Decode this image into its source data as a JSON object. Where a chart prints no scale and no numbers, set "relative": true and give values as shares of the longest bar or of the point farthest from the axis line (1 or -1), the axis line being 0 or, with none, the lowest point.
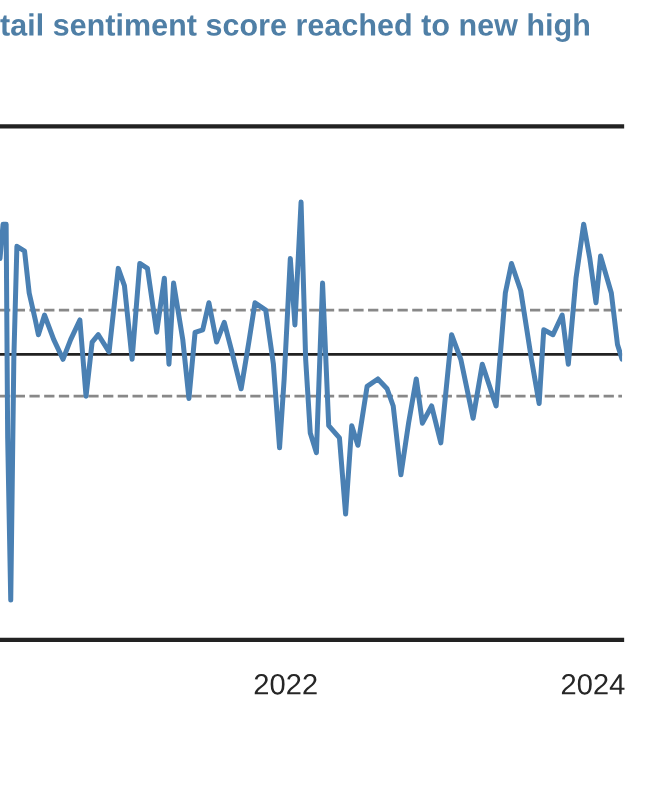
{
  "chart_data": {
    "type": "line",
    "title": "tail sentiment score reached to new high",
    "relative": true,
    "xlim": [
      2020.14,
      2024.19
    ],
    "xticks": [
      2022,
      2024
    ],
    "tick_labels": "x",
    "grid": false,
    "legend": false,
    "marker": "none",
    "line_style": "solid",
    "ref_lines": [
      {
        "axis": "y",
        "value": 0,
        "label": null,
        "color": "#222222",
        "line_style": "solid"
      },
      {
        "axis": "y",
        "value": 0.18,
        "label": null,
        "color": "#888888",
        "line_style": "dashed"
      },
      {
        "axis": "y",
        "value": -0.17,
        "label": null,
        "color": "#888888",
        "line_style": "dashed"
      }
    ],
    "series": [
      {
        "color": "#4a80b3",
        "x": [
          2020.14,
          2020.16,
          2020.18,
          2020.19,
          2020.21,
          2020.23,
          2020.25,
          2020.3,
          2020.33,
          2020.37,
          2020.39,
          2020.43,
          2020.49,
          2020.55,
          2020.6,
          2020.66,
          2020.7,
          2020.74,
          2020.78,
          2020.85,
          2020.91,
          2020.95,
          2021.0,
          2021.05,
          2021.1,
          2021.16,
          2021.21,
          2021.24,
          2021.27,
          2021.33,
          2021.37,
          2021.41,
          2021.46,
          2021.5,
          2021.55,
          2021.6,
          2021.65,
          2021.71,
          2021.76,
          2021.8,
          2021.87,
          2021.92,
          2021.96,
          2021.99,
          2022.03,
          2022.06,
          2022.1,
          2022.13,
          2022.16,
          2022.2,
          2022.24,
          2022.28,
          2022.35,
          2022.39,
          2022.43,
          2022.47,
          2022.53,
          2022.6,
          2022.66,
          2022.7,
          2022.75,
          2022.8,
          2022.85,
          2022.89,
          2022.95,
          2023.01,
          2023.08,
          2023.14,
          2023.22,
          2023.28,
          2023.37,
          2023.43,
          2023.47,
          2023.53,
          2023.6,
          2023.65,
          2023.68,
          2023.74,
          2023.8,
          2023.84,
          2023.89,
          2023.94,
          2023.98,
          2024.02,
          2024.05,
          2024.12,
          2024.16,
          2024.19
        ],
        "values": [
          0.39,
          0.53,
          0.53,
          -0.34,
          -1,
          -0.02,
          0.44,
          0.42,
          0.25,
          0.14,
          0.08,
          0.16,
          0.06,
          -0.02,
          0.06,
          0.14,
          -0.17,
          0.05,
          0.08,
          0.01,
          0.35,
          0.28,
          -0.02,
          0.37,
          0.35,
          0.09,
          0.31,
          -0.04,
          0.29,
          0.06,
          -0.18,
          0.09,
          0.1,
          0.21,
          0.05,
          0.13,
          0.01,
          -0.14,
          0.05,
          0.21,
          0.18,
          -0.04,
          -0.38,
          -0.1,
          0.39,
          0.12,
          0.62,
          -0.02,
          -0.32,
          -0.4,
          0.29,
          -0.29,
          -0.34,
          -0.65,
          -0.29,
          -0.37,
          -0.13,
          -0.1,
          -0.14,
          -0.21,
          -0.49,
          -0.28,
          -0.1,
          -0.28,
          -0.21,
          -0.36,
          0.08,
          -0.02,
          -0.26,
          -0.04,
          -0.21,
          0.25,
          0.37,
          0.26,
          -0.02,
          -0.2,
          0.1,
          0.08,
          0.16,
          -0.04,
          0.31,
          0.53,
          0.39,
          0.21,
          0.4,
          0.25,
          0.04,
          -0.02
        ]
      }
    ]
  }
}
